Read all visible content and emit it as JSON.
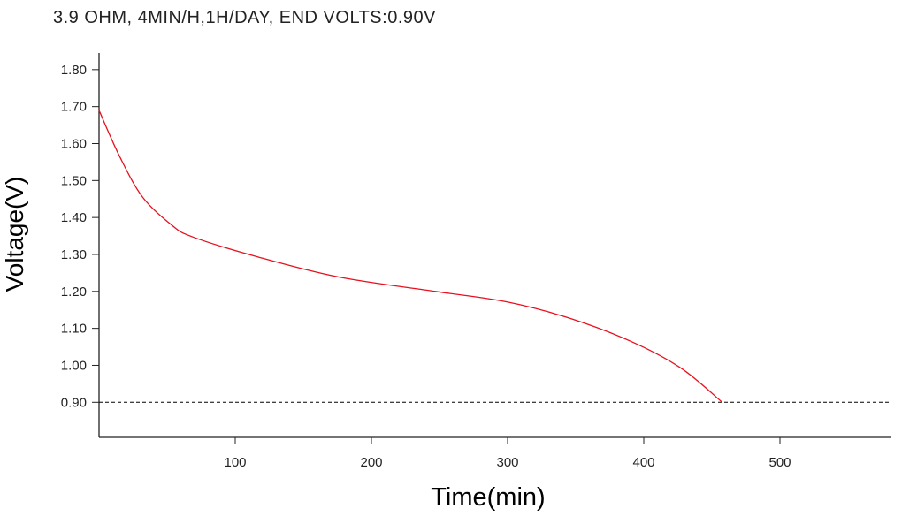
{
  "chart_data": {
    "type": "line",
    "title": "3.9 OHM, 4MIN/H,1H/DAY, END VOLTS:0.90V",
    "xlabel": "Time(min)",
    "ylabel": "Voltage(V)",
    "xlim": [
      0,
      582
    ],
    "ylim": [
      0.8,
      1.85
    ],
    "xticks": [
      100,
      200,
      300,
      400,
      500
    ],
    "xtick_labels": [
      "100",
      "200",
      "300",
      "400",
      "500"
    ],
    "yticks": [
      0.9,
      1.0,
      1.1,
      1.2,
      1.3,
      1.4,
      1.5,
      1.6,
      1.7,
      1.8
    ],
    "ytick_labels": [
      "0.90",
      "1.00",
      "1.10",
      "1.20",
      "1.30",
      "1.40",
      "1.50",
      "1.60",
      "1.70",
      "1.80"
    ],
    "grid": false,
    "reference_line": {
      "y": 0.9,
      "style": "dashed",
      "color": "#000000"
    },
    "series": [
      {
        "name": "Voltage",
        "color": "#e8101e",
        "x": [
          0,
          15,
          32,
          53.5,
          69,
          115,
          176,
          247,
          299,
          345,
          391,
          427.5,
          457.6
        ],
        "y": [
          1.69,
          1.566,
          1.455,
          1.379,
          1.347,
          1.295,
          1.239,
          1.2,
          1.172,
          1.128,
          1.064,
          0.992,
          0.9
        ]
      }
    ]
  }
}
